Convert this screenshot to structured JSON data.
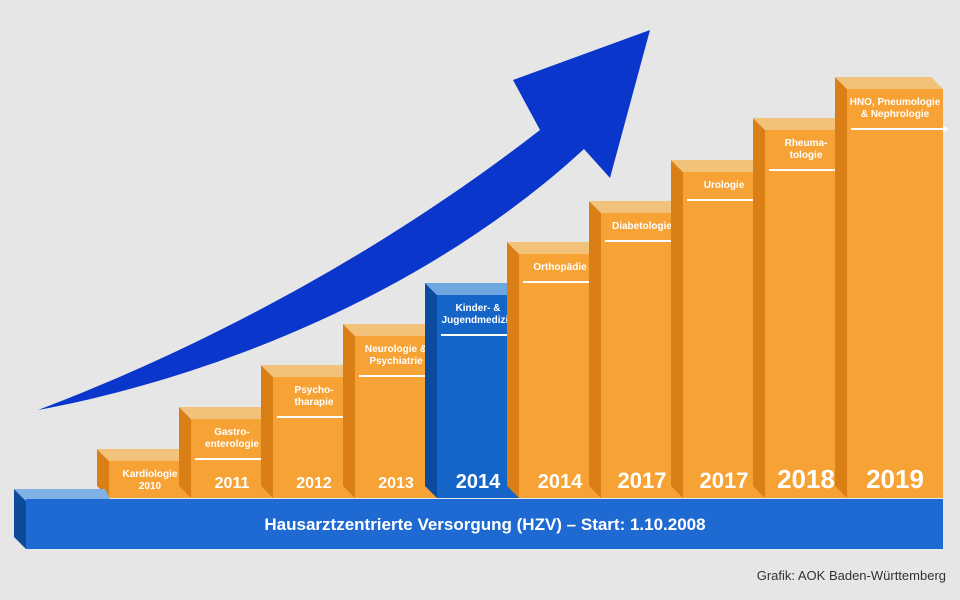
{
  "colors": {
    "background": "#e6e6e6",
    "step_front": "#f7a234",
    "step_top": "#f2c27a",
    "step_side": "#d97f16",
    "highlight_front": "#1565c8",
    "highlight_top": "#6fa7e0",
    "highlight_side": "#0c4a9e",
    "base_front": "#1e6ad2",
    "base_top": "#7fb0e6",
    "base_side": "#0d4a9a",
    "arrow": "#0b36cc",
    "text_light": "#ffffff",
    "credit_text": "#333333"
  },
  "base": {
    "label": "Hausarztzentrierte Versorgung (HZV) – Start: 1.10.2008"
  },
  "steps": [
    {
      "specialty": "Kardiologie\n2010",
      "year": "",
      "highlight": false
    },
    {
      "specialty": "Gastro-\nenterologie",
      "year": "2011",
      "highlight": false
    },
    {
      "specialty": "Psycho-\ntharapie",
      "year": "2012",
      "highlight": false
    },
    {
      "specialty": "Neurologie &\nPsychiatrie",
      "year": "2013",
      "highlight": false
    },
    {
      "specialty": "Kinder- &\nJugendmedizin",
      "year": "2014",
      "highlight": true
    },
    {
      "specialty": "Orthopädie",
      "year": "2014",
      "highlight": false
    },
    {
      "specialty": "Diabetologie",
      "year": "2017",
      "highlight": false
    },
    {
      "specialty": "Urologie",
      "year": "2017",
      "highlight": false
    },
    {
      "specialty": "Rheuma-\ntologie",
      "year": "2018",
      "highlight": false
    },
    {
      "specialty": "HNO, Pneumologie\n& Nephrologie",
      "year": "2019",
      "highlight": false
    }
  ],
  "growth_arrow": {
    "icon": "growth-arrow-icon"
  },
  "credit": "Grafik: AOK Baden-Württemberg"
}
